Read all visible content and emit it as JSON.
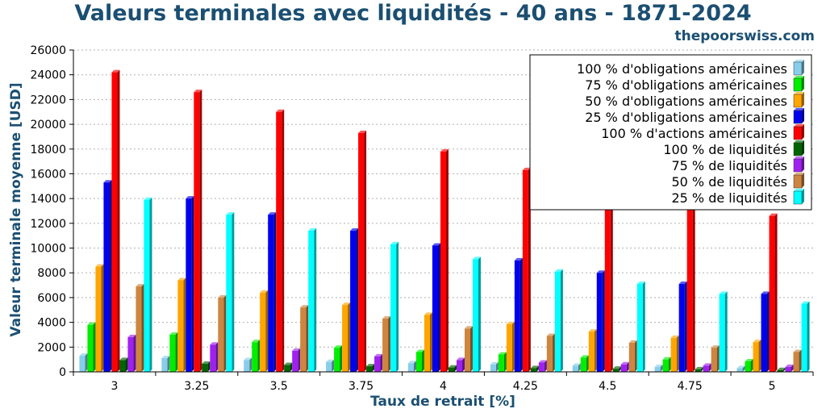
{
  "header": {
    "title": "Valeurs terminales avec liquidités - 40 ans - 1871-2024",
    "site": "thepoorswiss.com"
  },
  "chart_data": {
    "type": "bar",
    "title": "Valeurs terminales avec liquidités - 40 ans - 1871-2024",
    "xlabel": "Taux de retrait [%]",
    "ylabel": "Valeur terminale moyenne [USD]",
    "ylim": [
      0,
      26000
    ],
    "yticks": [
      0,
      2000,
      4000,
      6000,
      8000,
      10000,
      12000,
      14000,
      16000,
      18000,
      20000,
      22000,
      24000,
      26000
    ],
    "grid": true,
    "legend_position": "top-right",
    "categories": [
      "3",
      "3.25",
      "3.5",
      "3.75",
      "4",
      "4.25",
      "4.5",
      "4.75",
      "5"
    ],
    "series": [
      {
        "name": "100 % d'obligations américaines",
        "color": "#87ceeb",
        "values": [
          1300,
          1100,
          950,
          800,
          700,
          600,
          500,
          400,
          300
        ]
      },
      {
        "name": "75 % d'obligations américaines",
        "color": "#00ee00",
        "values": [
          3800,
          3000,
          2400,
          1950,
          1600,
          1400,
          1150,
          1000,
          850
        ]
      },
      {
        "name": "50 % d'obligations américaines",
        "color": "#ffa500",
        "values": [
          8500,
          7400,
          6400,
          5400,
          4600,
          3850,
          3250,
          2750,
          2400
        ]
      },
      {
        "name": "25 % d'obligations américaines",
        "color": "#0000ee",
        "values": [
          15300,
          14000,
          12700,
          11400,
          10200,
          9000,
          8000,
          7100,
          6300
        ]
      },
      {
        "name": "100 % d'actions américaines",
        "color": "#ff0000",
        "values": [
          24200,
          22600,
          21000,
          19300,
          17800,
          16300,
          14800,
          13800,
          12600
        ]
      },
      {
        "name": "100 % de liquidités",
        "color": "#006400",
        "values": [
          950,
          650,
          550,
          450,
          350,
          300,
          250,
          200,
          150
        ]
      },
      {
        "name": "75 % de liquidités",
        "color": "#a020f0",
        "values": [
          2800,
          2200,
          1700,
          1250,
          950,
          750,
          600,
          500,
          400
        ]
      },
      {
        "name": "50 % de liquidités",
        "color": "#cd853f",
        "values": [
          6900,
          6000,
          5200,
          4300,
          3500,
          2900,
          2350,
          1950,
          1600
        ]
      },
      {
        "name": "25 % de liquidités",
        "color": "#00ffff",
        "values": [
          13900,
          12700,
          11400,
          10300,
          9100,
          8100,
          7100,
          6300,
          5500
        ]
      }
    ]
  }
}
